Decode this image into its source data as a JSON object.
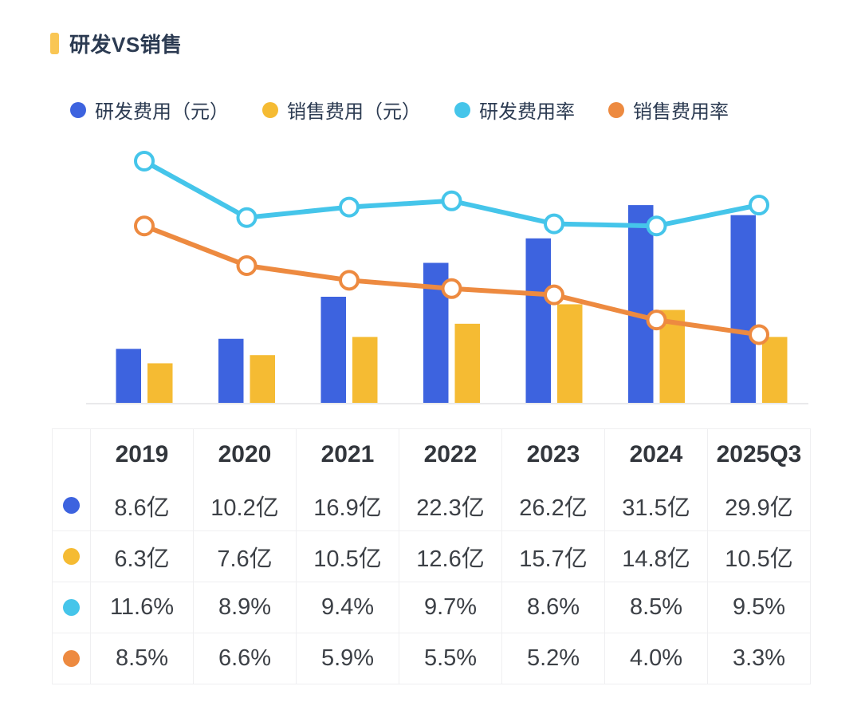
{
  "title": {
    "text": "研发VS销售",
    "accent_color": "#F9C654"
  },
  "legend": {
    "items": [
      {
        "label": "研发费用（元）",
        "color": "#3D63DF"
      },
      {
        "label": "销售费用（元）",
        "color": "#F5BB33"
      },
      {
        "label": "研发费用率",
        "color": "#45C5EA"
      },
      {
        "label": "销售费用率",
        "color": "#ED8A40"
      }
    ]
  },
  "chart_data": {
    "type": "combo",
    "categories": [
      "2019",
      "2020",
      "2021",
      "2022",
      "2023",
      "2024",
      "2025Q3"
    ],
    "series": [
      {
        "name": "研发费用（元）",
        "type": "bar",
        "unit": "亿",
        "color": "#3D63DF",
        "values": [
          8.6,
          10.2,
          16.9,
          22.3,
          26.2,
          31.5,
          29.9
        ]
      },
      {
        "name": "销售费用（元）",
        "type": "bar",
        "unit": "亿",
        "color": "#F5BB33",
        "values": [
          6.3,
          7.6,
          10.5,
          12.6,
          15.7,
          14.8,
          10.5
        ]
      },
      {
        "name": "研发费用率",
        "type": "line",
        "unit": "%",
        "color": "#45C5EA",
        "values": [
          11.6,
          8.9,
          9.4,
          9.7,
          8.6,
          8.5,
          9.5
        ]
      },
      {
        "name": "销售费用率",
        "type": "line",
        "unit": "%",
        "color": "#ED8A40",
        "values": [
          8.5,
          6.6,
          5.9,
          5.5,
          5.2,
          4.0,
          3.3
        ]
      }
    ],
    "title": "研发VS销售",
    "xlabel": "",
    "ylabel": "",
    "legend_position": "top",
    "grid": false,
    "axes_ticks_visible": false,
    "bar_axis_unit": "亿",
    "line_axis_unit": "%",
    "marker_style": "open-circle"
  },
  "table": {
    "columns": [
      "2019",
      "2020",
      "2021",
      "2022",
      "2023",
      "2024",
      "2025Q3"
    ],
    "rows": [
      {
        "series": "研发费用（元）",
        "dot_color": "#3D63DF",
        "values": [
          "8.6亿",
          "10.2亿",
          "16.9亿",
          "22.3亿",
          "26.2亿",
          "31.5亿",
          "29.9亿"
        ]
      },
      {
        "series": "销售费用（元）",
        "dot_color": "#F5BB33",
        "values": [
          "6.3亿",
          "7.6亿",
          "10.5亿",
          "12.6亿",
          "15.7亿",
          "14.8亿",
          "10.5亿"
        ]
      },
      {
        "series": "研发费用率",
        "dot_color": "#45C5EA",
        "values": [
          "11.6%",
          "8.9%",
          "9.4%",
          "9.7%",
          "8.6%",
          "8.5%",
          "9.5%"
        ]
      },
      {
        "series": "销售费用率",
        "dot_color": "#ED8A40",
        "values": [
          "8.5%",
          "6.6%",
          "5.9%",
          "5.5%",
          "5.2%",
          "4.0%",
          "3.3%"
        ]
      }
    ]
  }
}
